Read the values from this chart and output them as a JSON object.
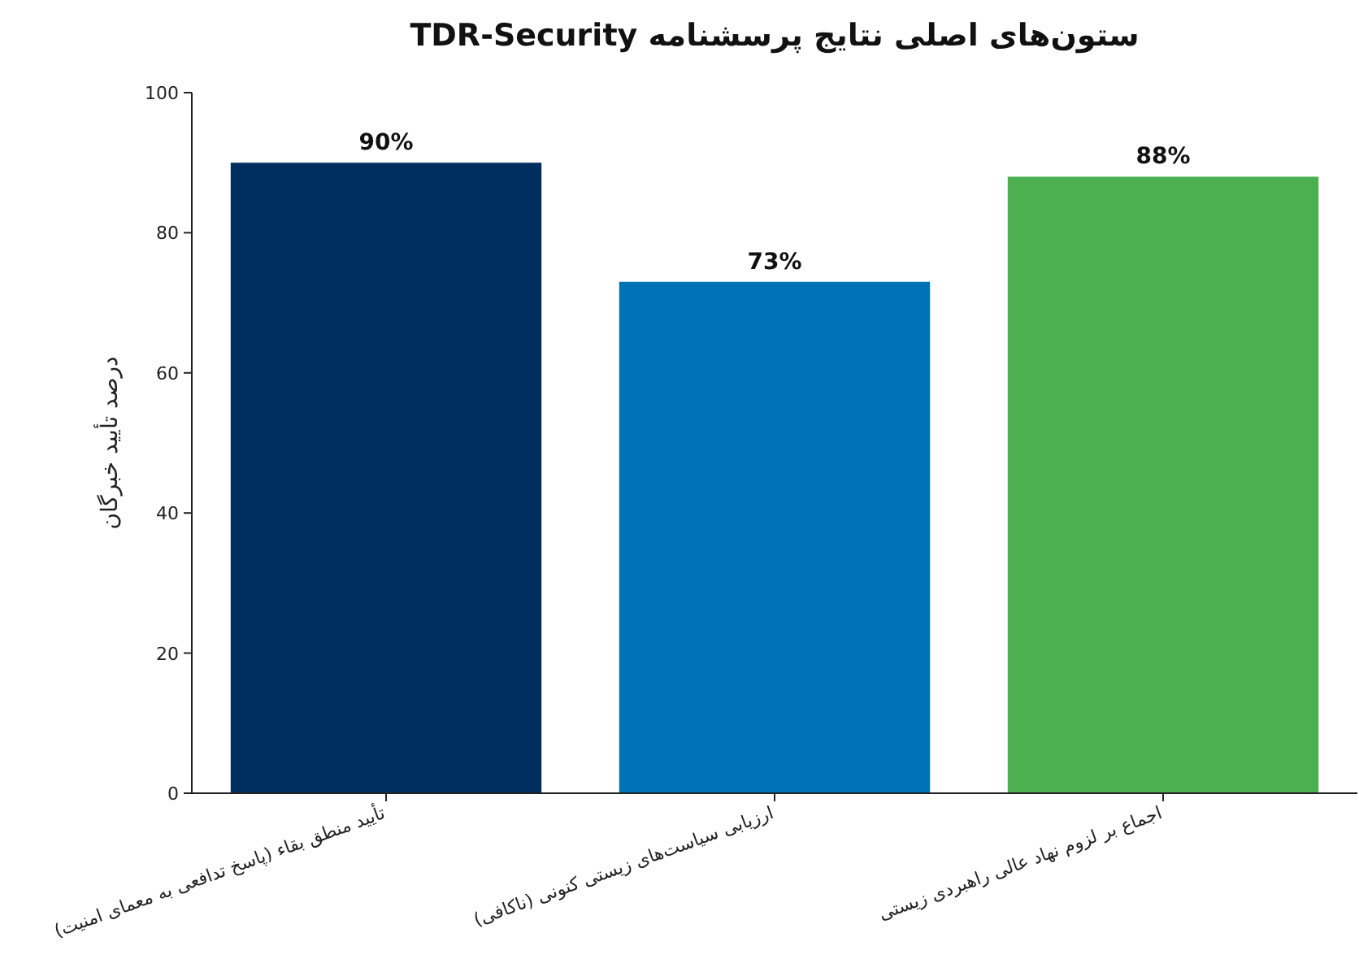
{
  "chart_data": {
    "type": "bar",
    "title": "ستون‌های اصلی نتایج پرسشنامه TDR-Security",
    "ylabel": "درصد تأیید خبرگان",
    "categories": [
      "تأیید منطق بقاء (پاسخ تدافعی به معمای امنیت)",
      "ارزیابی سیاست‌های زیستی کنونی (ناکافی)",
      "اجماع بر لزوم نهاد عالی راهبردی زیستی"
    ],
    "values": [
      90,
      73,
      88
    ],
    "colors": [
      "#002f5f",
      "#0073b7",
      "#4caf50"
    ],
    "value_labels": [
      "90%",
      "73%",
      "88%"
    ],
    "ylim": [
      0,
      100
    ],
    "yticks": [
      0,
      20,
      40,
      60,
      80,
      100
    ],
    "grid": false
  }
}
